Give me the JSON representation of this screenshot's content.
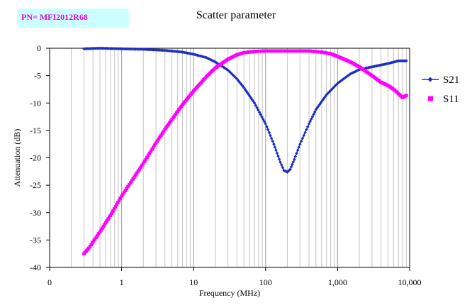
{
  "part_number": "PN= MFI2012R68",
  "chart_data": {
    "type": "line",
    "title": "Scatter parameter",
    "xlabel": "Frequency (MHz)",
    "ylabel": "Attenuation (dB)",
    "x_scale": "log",
    "xlim": [
      0.1,
      10000
    ],
    "ylim": [
      -40,
      0
    ],
    "x_tick_labels": [
      {
        "value": 0.1,
        "label": "0"
      },
      {
        "value": 1,
        "label": "1"
      },
      {
        "value": 10,
        "label": "10"
      },
      {
        "value": 100,
        "label": "100"
      },
      {
        "value": 1000,
        "label": "1,000"
      },
      {
        "value": 10000,
        "label": "10,000"
      }
    ],
    "y_ticks": [
      0,
      -5,
      -10,
      -15,
      -20,
      -25,
      -30,
      -35,
      -40
    ],
    "grid": {
      "x_minor_log": true,
      "y_major": false
    },
    "legend_position": "right",
    "series": [
      {
        "name": "S21",
        "color": "#1f2fbf",
        "marker": "diamond",
        "points": [
          [
            0.3,
            -0.1
          ],
          [
            0.5,
            0.0
          ],
          [
            1,
            -0.1
          ],
          [
            2,
            -0.2
          ],
          [
            4,
            -0.4
          ],
          [
            7,
            -0.7
          ],
          [
            10,
            -1.1
          ],
          [
            15,
            -1.7
          ],
          [
            20,
            -2.5
          ],
          [
            30,
            -4.0
          ],
          [
            40,
            -5.6
          ],
          [
            50,
            -7.2
          ],
          [
            70,
            -10.0
          ],
          [
            100,
            -13.8
          ],
          [
            130,
            -17.5
          ],
          [
            160,
            -20.8
          ],
          [
            180,
            -22.3
          ],
          [
            200,
            -22.6
          ],
          [
            220,
            -22.1
          ],
          [
            250,
            -20.3
          ],
          [
            300,
            -17.5
          ],
          [
            400,
            -13.8
          ],
          [
            500,
            -11.2
          ],
          [
            700,
            -8.5
          ],
          [
            1000,
            -6.4
          ],
          [
            1500,
            -4.7
          ],
          [
            2000,
            -3.9
          ],
          [
            3000,
            -3.4
          ],
          [
            5000,
            -2.8
          ],
          [
            7000,
            -2.3
          ],
          [
            9000,
            -2.3
          ]
        ]
      },
      {
        "name": "S11",
        "color": "#ff00ff",
        "marker": "square",
        "points": [
          [
            0.3,
            -37.5
          ],
          [
            0.35,
            -36.5
          ],
          [
            0.5,
            -33.5
          ],
          [
            0.7,
            -30.5
          ],
          [
            1,
            -27.0
          ],
          [
            1.5,
            -23.5
          ],
          [
            2,
            -21.0
          ],
          [
            3,
            -17.3
          ],
          [
            4,
            -14.8
          ],
          [
            5,
            -13.0
          ],
          [
            7,
            -10.3
          ],
          [
            10,
            -7.8
          ],
          [
            15,
            -5.2
          ],
          [
            20,
            -3.6
          ],
          [
            30,
            -2.0
          ],
          [
            40,
            -1.2
          ],
          [
            50,
            -0.8
          ],
          [
            70,
            -0.6
          ],
          [
            100,
            -0.5
          ],
          [
            200,
            -0.5
          ],
          [
            400,
            -0.5
          ],
          [
            600,
            -0.7
          ],
          [
            800,
            -1.0
          ],
          [
            1000,
            -1.5
          ],
          [
            1500,
            -2.5
          ],
          [
            2000,
            -3.4
          ],
          [
            3000,
            -5.0
          ],
          [
            4000,
            -6.2
          ],
          [
            5000,
            -6.8
          ],
          [
            6000,
            -7.5
          ],
          [
            7000,
            -8.3
          ],
          [
            8000,
            -9.0
          ],
          [
            9000,
            -8.6
          ]
        ]
      }
    ]
  }
}
